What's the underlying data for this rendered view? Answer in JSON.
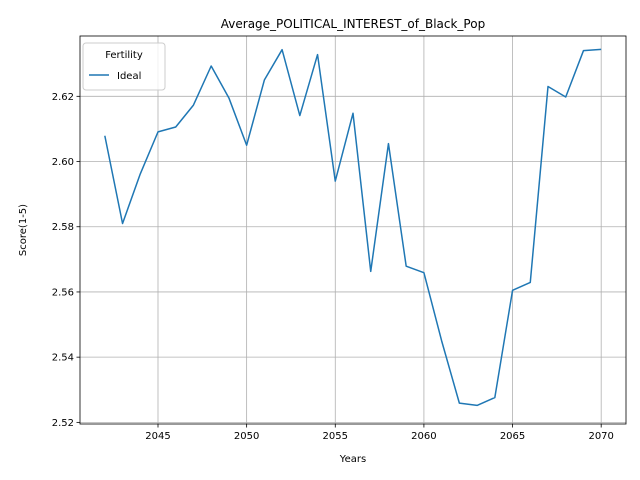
{
  "chart_data": {
    "type": "line",
    "title": "Average_POLITICAL_INTEREST_of_Black_Pop",
    "xlabel": "Years",
    "ylabel": "Score(1-5)",
    "xlim": [
      2040.6,
      2071.4
    ],
    "ylim": [
      2.5195,
      2.6385
    ],
    "xticks": [
      2045,
      2050,
      2055,
      2060,
      2065,
      2070
    ],
    "yticks": [
      2.52,
      2.54,
      2.56,
      2.58,
      2.6,
      2.62
    ],
    "ytick_labels": [
      "2.52",
      "2.54",
      "2.56",
      "2.58",
      "2.60",
      "2.62"
    ],
    "grid": true,
    "legend": {
      "title": "Fertility",
      "placement": "top-left"
    },
    "series": [
      {
        "name": "Ideal",
        "color": "#1f77b4",
        "x": [
          2042,
          2043,
          2044,
          2045,
          2046,
          2047,
          2048,
          2049,
          2050,
          2051,
          2052,
          2053,
          2054,
          2055,
          2056,
          2057,
          2058,
          2059,
          2060,
          2061,
          2062,
          2063,
          2064,
          2065,
          2066,
          2067,
          2068,
          2069,
          2070
        ],
        "y": [
          2.6079,
          2.581,
          2.5962,
          2.6091,
          2.6106,
          2.6173,
          2.6293,
          2.6195,
          2.605,
          2.625,
          2.6343,
          2.6141,
          2.6328,
          2.594,
          2.6148,
          2.5663,
          2.6055,
          2.5679,
          2.5659,
          2.545,
          2.5259,
          2.5252,
          2.5276,
          2.5605,
          2.5629,
          2.623,
          2.6198,
          2.634,
          2.6344
        ]
      }
    ]
  }
}
